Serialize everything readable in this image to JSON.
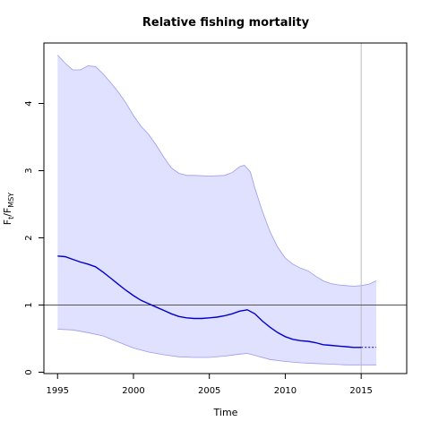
{
  "chart_data": {
    "type": "line",
    "title": "Relative fishing mortality",
    "xlabel": "Time",
    "ylabel": {
      "main_1": "F",
      "sub_1": "t",
      "sep": "/",
      "main_2": "F",
      "sub_2": "MSY"
    },
    "xlim": [
      1994.1,
      2018.0
    ],
    "ylim": [
      -0.02,
      4.9
    ],
    "x_ticks": [
      "1995",
      "2000",
      "2005",
      "2010",
      "2015"
    ],
    "y_ticks": [
      "0",
      "1",
      "2",
      "3",
      "4"
    ],
    "reference_line_y": 1,
    "vertical_line_x": 2015,
    "projection_start": 2015,
    "grid": false,
    "colors": {
      "estimate": "#0000cc",
      "band_fill": "#e0e0ff",
      "band_edge": "#9a9af0",
      "refline": "#555555",
      "vline": "#bbbbbb"
    },
    "series": [
      {
        "values": [
          [
            1995,
            1.73
          ],
          [
            1995.5,
            1.72
          ],
          [
            1996,
            1.68
          ],
          [
            1996.5,
            1.64
          ],
          [
            1997,
            1.61
          ],
          [
            1997.5,
            1.57
          ],
          [
            1998,
            1.49
          ],
          [
            1998.5,
            1.4
          ],
          [
            1999,
            1.31
          ],
          [
            1999.5,
            1.22
          ],
          [
            2000,
            1.14
          ],
          [
            2000.5,
            1.07
          ],
          [
            2001,
            1.02
          ],
          [
            2001.5,
            0.97
          ],
          [
            2002,
            0.92
          ],
          [
            2002.5,
            0.87
          ],
          [
            2003,
            0.83
          ],
          [
            2003.5,
            0.81
          ],
          [
            2004,
            0.8
          ],
          [
            2004.5,
            0.8
          ],
          [
            2005,
            0.81
          ],
          [
            2005.5,
            0.82
          ],
          [
            2006,
            0.84
          ],
          [
            2006.5,
            0.87
          ],
          [
            2007,
            0.91
          ],
          [
            2007.5,
            0.93
          ],
          [
            2008,
            0.87
          ],
          [
            2008.5,
            0.76
          ],
          [
            2009,
            0.67
          ],
          [
            2009.5,
            0.59
          ],
          [
            2010,
            0.53
          ],
          [
            2010.5,
            0.49
          ],
          [
            2011,
            0.47
          ],
          [
            2011.5,
            0.46
          ],
          [
            2012,
            0.44
          ],
          [
            2012.5,
            0.41
          ],
          [
            2013,
            0.4
          ],
          [
            2013.5,
            0.39
          ],
          [
            2014,
            0.38
          ],
          [
            2014.5,
            0.37
          ],
          [
            2015,
            0.37
          ]
        ],
        "projection": [
          [
            2015,
            0.37
          ],
          [
            2015.5,
            0.37
          ],
          [
            2016,
            0.37
          ]
        ],
        "lower": [
          [
            1995,
            0.64
          ],
          [
            1996,
            0.63
          ],
          [
            1997,
            0.59
          ],
          [
            1998,
            0.54
          ],
          [
            1999,
            0.45
          ],
          [
            2000,
            0.36
          ],
          [
            2001,
            0.3
          ],
          [
            2002,
            0.26
          ],
          [
            2003,
            0.23
          ],
          [
            2004,
            0.22
          ],
          [
            2005,
            0.22
          ],
          [
            2006,
            0.24
          ],
          [
            2007,
            0.27
          ],
          [
            2007.5,
            0.28
          ],
          [
            2008,
            0.25
          ],
          [
            2009,
            0.19
          ],
          [
            2010,
            0.16
          ],
          [
            2011,
            0.14
          ],
          [
            2012,
            0.13
          ],
          [
            2013,
            0.12
          ],
          [
            2014,
            0.11
          ],
          [
            2015,
            0.11
          ],
          [
            2016,
            0.11
          ]
        ],
        "upper": [
          [
            1995,
            4.72
          ],
          [
            1995.5,
            4.6
          ],
          [
            1996,
            4.5
          ],
          [
            1996.5,
            4.5
          ],
          [
            1997,
            4.56
          ],
          [
            1997.5,
            4.55
          ],
          [
            1998,
            4.44
          ],
          [
            1998.5,
            4.31
          ],
          [
            1999,
            4.17
          ],
          [
            1999.5,
            4.01
          ],
          [
            2000,
            3.82
          ],
          [
            2000.5,
            3.66
          ],
          [
            2001,
            3.54
          ],
          [
            2001.5,
            3.38
          ],
          [
            2002,
            3.2
          ],
          [
            2002.5,
            3.04
          ],
          [
            2003,
            2.96
          ],
          [
            2003.5,
            2.93
          ],
          [
            2004,
            2.93
          ],
          [
            2005,
            2.92
          ],
          [
            2006,
            2.93
          ],
          [
            2006.5,
            2.97
          ],
          [
            2007,
            3.06
          ],
          [
            2007.3,
            3.08
          ],
          [
            2007.7,
            2.98
          ],
          [
            2008,
            2.74
          ],
          [
            2008.5,
            2.39
          ],
          [
            2009,
            2.09
          ],
          [
            2009.5,
            1.86
          ],
          [
            2010,
            1.7
          ],
          [
            2010.5,
            1.61
          ],
          [
            2011,
            1.55
          ],
          [
            2011.5,
            1.51
          ],
          [
            2012,
            1.43
          ],
          [
            2012.5,
            1.36
          ],
          [
            2013,
            1.32
          ],
          [
            2013.5,
            1.3
          ],
          [
            2014,
            1.29
          ],
          [
            2014.5,
            1.28
          ],
          [
            2015,
            1.29
          ],
          [
            2015.5,
            1.31
          ],
          [
            2016,
            1.36
          ]
        ]
      }
    ]
  }
}
